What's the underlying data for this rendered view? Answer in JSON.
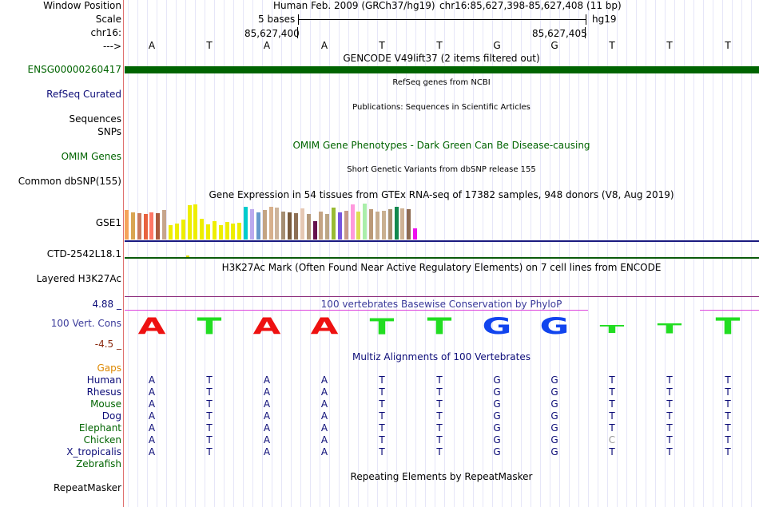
{
  "labels": {
    "window_position": "Window Position",
    "scale": "Scale",
    "chr": "chr16:",
    "arrow": "--->",
    "ensg": "ENSG00000260417",
    "refseq": "RefSeq Curated",
    "sequences": "Sequences",
    "snps": "SNPs",
    "omim": "OMIM Genes",
    "dbsnp": "Common dbSNP(155)",
    "gse": "GSE1",
    "ctd": "CTD-2542L18.1",
    "h3k27ac": "Layered H3K27Ac",
    "cons_max": "4.88 _",
    "cons": "100 Vert. Cons",
    "cons_min": "-4.5 _",
    "gaps": "Gaps",
    "zebrafish": "Zebrafish",
    "repeatmasker": "RepeatMasker"
  },
  "ruler": {
    "title": "Human Feb. 2009 (GRCh37/hg19)",
    "region": "chr16:85,627,398-85,627,408 (11 bp)",
    "scale_text": "5 bases",
    "assembly": "hg19",
    "coord_left": "85,627,400",
    "coord_right": "85,627,405"
  },
  "bases": [
    "A",
    "T",
    "A",
    "A",
    "T",
    "T",
    "G",
    "G",
    "T",
    "T",
    "T"
  ],
  "tracks": {
    "gencode": "GENCODE V49lift37 (2 items filtered out)",
    "refseq": "RefSeq genes from NCBI",
    "publications": "Publications: Sequences in Scientific Articles",
    "omim": "OMIM Gene Phenotypes - Dark Green Can Be Disease-causing",
    "dbsnp": "Short Genetic Variants from dbSNP release 155",
    "gtex": "Gene Expression in 54 tissues from GTEx RNA-seq of 17382 samples, 948 donors (V8, Aug 2019)",
    "h3k27ac": "H3K27Ac Mark (Often Found Near Active Regulatory Elements) on 7 cell lines from ENCODE",
    "phylop": "100 vertebrates Basewise Conservation by PhyloP",
    "multiz": "Multiz Alignments of 100 Vertebrates",
    "repeat": "Repeating Elements by RepeatMasker"
  },
  "species": [
    {
      "name": "Human",
      "seq": [
        "A",
        "T",
        "A",
        "A",
        "T",
        "T",
        "G",
        "G",
        "T",
        "T",
        "T"
      ]
    },
    {
      "name": "Rhesus",
      "seq": [
        "A",
        "T",
        "A",
        "A",
        "T",
        "T",
        "G",
        "G",
        "T",
        "T",
        "T"
      ]
    },
    {
      "name": "Mouse",
      "seq": [
        "A",
        "T",
        "A",
        "A",
        "T",
        "T",
        "G",
        "G",
        "T",
        "T",
        "T"
      ]
    },
    {
      "name": "Dog",
      "seq": [
        "A",
        "T",
        "A",
        "A",
        "T",
        "T",
        "G",
        "G",
        "T",
        "T",
        "T"
      ]
    },
    {
      "name": "Elephant",
      "seq": [
        "A",
        "T",
        "A",
        "A",
        "T",
        "T",
        "G",
        "G",
        "T",
        "T",
        "T"
      ]
    },
    {
      "name": "Chicken",
      "seq": [
        "A",
        "T",
        "A",
        "A",
        "T",
        "T",
        "G",
        "G",
        "C",
        "T",
        "T"
      ]
    },
    {
      "name": "X_tropicalis",
      "seq": [
        "A",
        "T",
        "A",
        "A",
        "T",
        "T",
        "G",
        "G",
        "T",
        "T",
        "T"
      ]
    }
  ],
  "conservation_logo": [
    {
      "base": "A",
      "color": "#ee1111",
      "height": 1.0
    },
    {
      "base": "T",
      "color": "#22dd22",
      "height": 1.0
    },
    {
      "base": "A",
      "color": "#ee1111",
      "height": 1.0
    },
    {
      "base": "A",
      "color": "#ee1111",
      "height": 1.0
    },
    {
      "base": "T",
      "color": "#22dd22",
      "height": 0.95
    },
    {
      "base": "T",
      "color": "#22dd22",
      "height": 1.0
    },
    {
      "base": "G",
      "color": "#1144ee",
      "height": 1.0
    },
    {
      "base": "G",
      "color": "#1144ee",
      "height": 1.0
    },
    {
      "base": "T",
      "color": "#22dd22",
      "height": 0.45
    },
    {
      "base": "T",
      "color": "#22dd22",
      "height": 0.6
    },
    {
      "base": "T",
      "color": "#22dd22",
      "height": 1.0
    }
  ],
  "gtex_bars": [
    {
      "color": "#f5a35a",
      "value": 0.82
    },
    {
      "color": "#d9a552",
      "value": 0.76
    },
    {
      "color": "#c97a5e",
      "value": 0.74
    },
    {
      "color": "#e8623f",
      "value": 0.72
    },
    {
      "color": "#ff7766",
      "value": 0.76
    },
    {
      "color": "#a95a3d",
      "value": 0.74
    },
    {
      "color": "#c6a58c",
      "value": 0.82
    },
    {
      "color": "#eeee00",
      "value": 0.4
    },
    {
      "color": "#eeee00",
      "value": 0.44
    },
    {
      "color": "#eeee00",
      "value": 0.56
    },
    {
      "color": "#eeee00",
      "value": 0.96
    },
    {
      "color": "#eeee00",
      "value": 0.98
    },
    {
      "color": "#eeee00",
      "value": 0.58
    },
    {
      "color": "#eeee00",
      "value": 0.42
    },
    {
      "color": "#eeee00",
      "value": 0.52
    },
    {
      "color": "#eeee00",
      "value": 0.4
    },
    {
      "color": "#eeee00",
      "value": 0.48
    },
    {
      "color": "#eeee00",
      "value": 0.44
    },
    {
      "color": "#eeee00",
      "value": 0.46
    },
    {
      "color": "#00cccc",
      "value": 0.92
    },
    {
      "color": "#bbaaee",
      "value": 0.84
    },
    {
      "color": "#6699cc",
      "value": 0.76
    },
    {
      "color": "#c4a482",
      "value": 0.82
    },
    {
      "color": "#d7b08c",
      "value": 0.9
    },
    {
      "color": "#cdb49b",
      "value": 0.88
    },
    {
      "color": "#a58e72",
      "value": 0.78
    },
    {
      "color": "#7a5c3d",
      "value": 0.76
    },
    {
      "color": "#8e7055",
      "value": 0.74
    },
    {
      "color": "#e6c8b4",
      "value": 0.86
    },
    {
      "color": "#b59a7c",
      "value": 0.72
    },
    {
      "color": "#66114d",
      "value": 0.5
    },
    {
      "color": "#c4a484",
      "value": 0.78
    },
    {
      "color": "#bca686",
      "value": 0.72
    },
    {
      "color": "#99bb33",
      "value": 0.88
    },
    {
      "color": "#7755dd",
      "value": 0.76
    },
    {
      "color": "#c79a8a",
      "value": 0.8
    },
    {
      "color": "#ff99dd",
      "value": 0.98
    },
    {
      "color": "#dddd55",
      "value": 0.78
    },
    {
      "color": "#aaeeaa",
      "value": 1.0
    },
    {
      "color": "#bb9977",
      "value": 0.84
    },
    {
      "color": "#c7ad8f",
      "value": 0.78
    },
    {
      "color": "#c9b090",
      "value": 0.8
    },
    {
      "color": "#a89070",
      "value": 0.84
    },
    {
      "color": "#11884e",
      "value": 0.92
    },
    {
      "color": "#cfb295",
      "value": 0.86
    },
    {
      "color": "#8e6b52",
      "value": 0.84
    },
    {
      "color": "#ee11ee",
      "value": 0.3
    }
  ]
}
